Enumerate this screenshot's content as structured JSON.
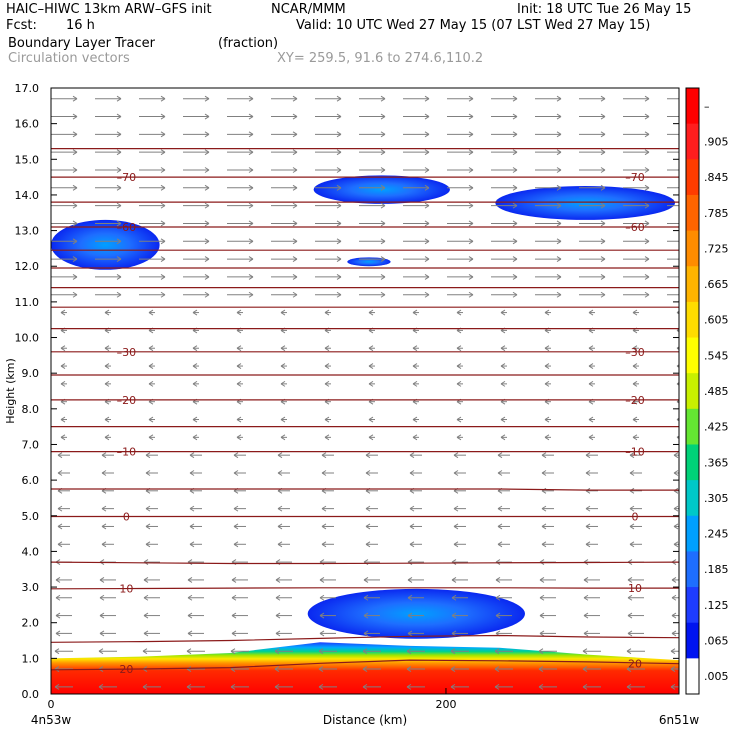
{
  "header": {
    "model": "HAIC–HIWC 13km ARW–GFS init",
    "org": "NCAR/MMM",
    "init": "Init: 18 UTC Tue 26 May 15",
    "fcst_label": "Fcst:",
    "fcst_value": "16 h",
    "valid": "Valid: 10 UTC Wed 27 May 15 (07 LST Wed 27 May 15)",
    "field_name": "Boundary Layer Tracer",
    "field_units": "(fraction)",
    "vector_name": "Circulation vectors",
    "xy_info": "XY= 259.5, 91.6 to 274.6,110.2"
  },
  "colors": {
    "contour": "#8b1a1a",
    "vector": "#808080",
    "text_gray": "#9a9a9a"
  },
  "chart_data": {
    "type": "heatmap",
    "ylabel": "Height (km)",
    "xlabel": "Distance (km)",
    "x_tick_labels": [
      {
        "value": 0,
        "label": "0"
      },
      {
        "value": 200,
        "label": "200"
      }
    ],
    "x_end_labels": {
      "left": "4n53w",
      "right": "6n51w"
    },
    "xlim": [
      0,
      318
    ],
    "ylim": [
      0,
      17
    ],
    "y_ticks": [
      {
        "value": 0.0,
        "label": "0.0"
      },
      {
        "value": 1.0,
        "label": "1.0"
      },
      {
        "value": 2.0,
        "label": "2.0"
      },
      {
        "value": 3.0,
        "label": "3.0"
      },
      {
        "value": 4.0,
        "label": "4.0"
      },
      {
        "value": 5.0,
        "label": "5.0"
      },
      {
        "value": 6.0,
        "label": "6.0"
      },
      {
        "value": 7.0,
        "label": "7.0"
      },
      {
        "value": 8.0,
        "label": "8.0"
      },
      {
        "value": 9.0,
        "label": "9.0"
      },
      {
        "value": 10.0,
        "label": "10.0"
      },
      {
        "value": 11.0,
        "label": "11.0"
      },
      {
        "value": 12.0,
        "label": "12.0"
      },
      {
        "value": 13.0,
        "label": "13.0"
      },
      {
        "value": 14.0,
        "label": "14.0"
      },
      {
        "value": 15.0,
        "label": "15.0"
      },
      {
        "value": 16.0,
        "label": "16.0"
      },
      {
        "value": 17.0,
        "label": "17.0"
      }
    ],
    "colorbar": {
      "labels": [
        "–",
        ".905",
        ".845",
        ".785",
        ".725",
        ".665",
        ".605",
        ".545",
        ".485",
        ".425",
        ".365",
        ".305",
        ".245",
        ".185",
        ".125",
        ".065",
        ".005"
      ],
      "colors": [
        "#ff0000",
        "#ff1e1e",
        "#ff3c00",
        "#ff6400",
        "#ff8c00",
        "#ffb400",
        "#ffdc00",
        "#ffff00",
        "#c8f000",
        "#64e632",
        "#00d278",
        "#00c8c8",
        "#00a0ff",
        "#1e6eff",
        "#1e3cff",
        "#0014f0",
        "#ffffff"
      ]
    },
    "temperature_contours": [
      {
        "label": "20",
        "heights": [
          0.68,
          0.7,
          0.74,
          0.86,
          0.95,
          0.93,
          0.9,
          0.85
        ]
      },
      {
        "label": "",
        "heights": [
          1.45,
          1.47,
          1.5,
          1.56,
          1.62,
          1.64,
          1.6,
          1.58
        ]
      },
      {
        "label": "10",
        "heights": [
          2.95,
          2.96,
          2.97,
          2.98,
          2.98,
          2.98,
          2.97,
          2.97
        ]
      },
      {
        "label": "",
        "heights": [
          3.7,
          3.68,
          3.66,
          3.66,
          3.67,
          3.68,
          3.69,
          3.7
        ]
      },
      {
        "label": "0",
        "heights": [
          4.98,
          4.98,
          4.98,
          4.98,
          4.98,
          4.98,
          4.98,
          4.98
        ]
      },
      {
        "label": "",
        "heights": [
          5.75,
          5.75,
          5.75,
          5.75,
          5.75,
          5.75,
          5.72,
          5.72
        ]
      },
      {
        "label": "–10",
        "heights": [
          6.8,
          6.8,
          6.8,
          6.8,
          6.8,
          6.8,
          6.8,
          6.8
        ]
      },
      {
        "label": "",
        "heights": [
          7.5,
          7.5,
          7.5,
          7.5,
          7.5,
          7.5,
          7.5,
          7.5
        ]
      },
      {
        "label": "–20",
        "heights": [
          8.25,
          8.25,
          8.25,
          8.25,
          8.25,
          8.25,
          8.25,
          8.25
        ]
      },
      {
        "label": "",
        "heights": [
          8.95,
          8.95,
          8.95,
          8.95,
          8.95,
          8.95,
          8.95,
          8.95
        ]
      },
      {
        "label": "–30",
        "heights": [
          9.6,
          9.6,
          9.6,
          9.6,
          9.6,
          9.6,
          9.6,
          9.6
        ]
      },
      {
        "label": "",
        "heights": [
          10.25,
          10.25,
          10.25,
          10.25,
          10.25,
          10.25,
          10.25,
          10.25
        ]
      },
      {
        "label": "",
        "heights": [
          10.85,
          10.85,
          10.85,
          10.85,
          10.85,
          10.85,
          10.85,
          10.85
        ]
      },
      {
        "label": "",
        "heights": [
          11.4,
          11.4,
          11.4,
          11.4,
          11.4,
          11.4,
          11.4,
          11.4
        ]
      },
      {
        "label": "",
        "heights": [
          11.95,
          11.95,
          11.95,
          11.95,
          11.95,
          11.95,
          11.95,
          11.95
        ]
      },
      {
        "label": "",
        "heights": [
          12.45,
          12.45,
          12.45,
          12.45,
          12.45,
          12.45,
          12.45,
          12.45
        ]
      },
      {
        "label": "–60",
        "heights": [
          13.1,
          13.1,
          13.1,
          13.1,
          13.1,
          13.1,
          13.1,
          13.1
        ]
      },
      {
        "label": "",
        "heights": [
          13.8,
          13.8,
          13.8,
          13.8,
          13.8,
          13.8,
          13.8,
          13.8
        ]
      },
      {
        "label": "–70",
        "heights": [
          14.5,
          14.5,
          14.5,
          14.5,
          14.5,
          14.5,
          14.5,
          14.5
        ]
      },
      {
        "label": "",
        "heights": [
          15.3,
          15.3,
          15.3,
          15.3,
          15.3,
          15.3,
          15.3,
          15.3
        ]
      }
    ],
    "tracer_blobs": [
      {
        "x_range": [
          0,
          55
        ],
        "y_range": [
          11.9,
          13.3
        ],
        "max": 0.05
      },
      {
        "x_range": [
          133,
          202
        ],
        "y_range": [
          13.75,
          14.55
        ],
        "max": 0.05
      },
      {
        "x_range": [
          150,
          172
        ],
        "y_range": [
          12.0,
          12.25
        ],
        "max": 0.04
      },
      {
        "x_range": [
          225,
          316
        ],
        "y_range": [
          13.3,
          14.25
        ],
        "max": 0.05
      },
      {
        "x_range": [
          130,
          240
        ],
        "y_range": [
          1.55,
          2.95
        ],
        "max": 0.17
      }
    ],
    "boundary_layer_top_km": [
      1.0,
      1.05,
      1.15,
      1.45,
      1.35,
      1.3,
      1.1,
      0.95
    ]
  }
}
